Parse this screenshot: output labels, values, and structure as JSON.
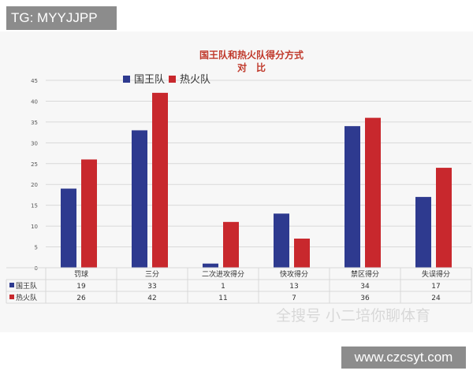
{
  "watermarks": {
    "top_left": "TG: MYYJJPP",
    "bottom_right": "www.czcsyt.com",
    "overlay": "全搜号 小二培你聊体育"
  },
  "colors": {
    "kings": "#2e3a8f",
    "heat": "#c8282d",
    "title": "#c0392b",
    "grid": "#d9d9d9",
    "axis_text": "#555555",
    "plot_bg": "#f7f7f7"
  },
  "chart_data": {
    "type": "bar",
    "title": "国王队和热火队得分方式",
    "subtitle": "对　比",
    "categories": [
      "罚球",
      "三分",
      "二次进攻得分",
      "快攻得分",
      "禁区得分",
      "失误得分"
    ],
    "series": [
      {
        "name": "国王队",
        "values": [
          19,
          33,
          1,
          13,
          34,
          17
        ]
      },
      {
        "name": "热火队",
        "values": [
          26,
          42,
          11,
          7,
          36,
          24
        ]
      }
    ],
    "yticks": [
      "0",
      "5",
      "10",
      "15",
      "20",
      "25",
      "30",
      "35",
      "40",
      "45"
    ],
    "ylim": [
      0,
      45
    ],
    "legend": "top-left",
    "grid": true,
    "data_table": true
  }
}
